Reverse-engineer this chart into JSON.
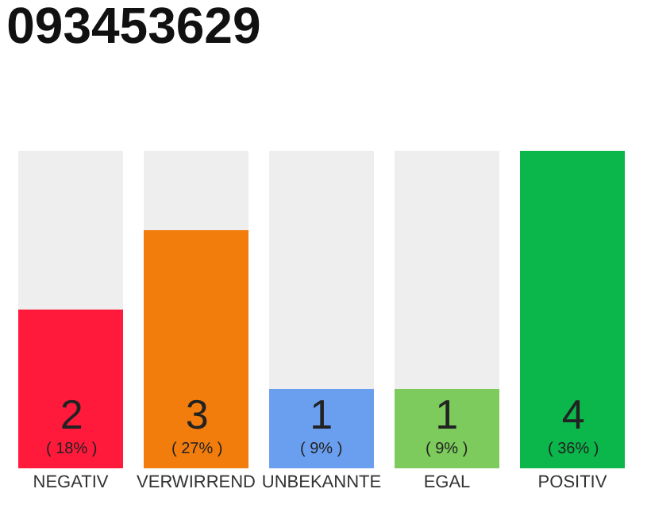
{
  "chart_data": {
    "type": "bar",
    "title": "093453629",
    "categories": [
      "NEGATIV",
      "VERWIRREND",
      "UNBEKANNTE",
      "EGAL",
      "POSITIV"
    ],
    "stacked": true,
    "series": [
      {
        "colors": [
          "#ff1a3c",
          "#f27d0c",
          "#6a9ff0",
          "#7ccb5c",
          "#0bb64a"
        ],
        "values": [
          2,
          3,
          1,
          1,
          4
        ],
        "value_labels": [
          "2\n( 18% )",
          "3\n( 27% )",
          "1\n( 9% )",
          "1\n( 9% )",
          "4\n( 36% )"
        ]
      },
      {
        "color": "#eeeeee",
        "values": [
          2,
          1,
          3,
          3,
          0
        ]
      }
    ],
    "ylim": [
      0,
      4
    ],
    "tick_labels": "x"
  }
}
